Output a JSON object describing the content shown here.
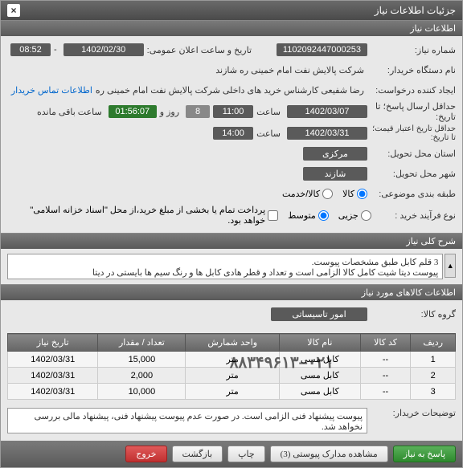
{
  "window": {
    "title": "جزئیات اطلاعات نیاز",
    "close": "×"
  },
  "sections": {
    "general": "اطلاعات نیاز",
    "summary": "شرح کلی نیاز",
    "items": "اطلاعات کالاهای مورد نیاز"
  },
  "fields": {
    "req_no_lbl": "شماره نیاز:",
    "req_no": "1102092447000253",
    "announce_lbl": "تاریخ و ساعت اعلان عمومی:",
    "announce_date": "1402/02/30",
    "announce_time": "08:52",
    "dash": " - ",
    "buyer_lbl": "نام دستگاه خریدار:",
    "buyer": "شرکت پالایش نفت امام خمینی ره  شازند",
    "requester_lbl": "ایجاد کننده درخواست:",
    "requester": "رضا  شفیعی  کارشناس خرید های داخلی  شرکت پالایش نفت امام خمینی  ره",
    "contact_link": "اطلاعات تماس خریدار",
    "deadline_lbl": "حداقل ارسال پاسخ؛ تا تاریخ:",
    "deadline_date": "1402/03/07",
    "saat_lbl": "ساعت",
    "deadline_time": "11:00",
    "days": "8",
    "va_lbl": "روز و",
    "countdown": "01:56:07",
    "remain_lbl": "ساعت باقی مانده",
    "valid_lbl": "حداقل تاریخ اعتبار قیمت؛ تا تاریخ:",
    "valid_date": "1402/03/31",
    "valid_time": "14:00",
    "deliver_prov_lbl": "استان محل تحویل:",
    "deliver_prov": "مرکزی",
    "deliver_city_lbl": "شهر محل تحویل:",
    "deliver_city": "شازند",
    "subject_lbl": "طبقه بندی موضوعی:",
    "subject_goods": "کالا",
    "subject_service": "کالا/خدمت",
    "process_lbl": "نوع فرآیند خرید :",
    "proc_small": "جزیی",
    "proc_medium": "متوسط",
    "proc_note": "پرداخت تمام یا بخشی از مبلغ خرید،از محل \"اسناد خزانه اسلامی\" خواهد بود.",
    "desc_text": "3 قلم کابل طبق مشخصات پیوست.\nپیوست دیتا شیت کامل کالا الزامی است و تعداد و قطر هادی کابل ها و رنگ سیم ها بایستی در دیتا",
    "group_lbl": "گروه کالا:",
    "group": "امور تاسیساتی",
    "buyer_notes_lbl": "توضیحات خریدار:",
    "buyer_notes": "پیوست پیشنهاد فنی الزامی است. در صورت عدم پیوست پیشنهاد فنی، پیشنهاد مالی بررسی نخواهد شد."
  },
  "table": {
    "headers": {
      "row": "ردیف",
      "code": "کد کالا",
      "name": "نام کالا",
      "unit": "واحد شمارش",
      "qty": "تعداد / مقدار",
      "date": "تاریخ نیاز"
    },
    "rows": [
      {
        "row": "1",
        "code": "--",
        "name": "کابل مسی",
        "unit": "متر",
        "qty": "15,000",
        "date": "1402/03/31"
      },
      {
        "row": "2",
        "code": "--",
        "name": "کابل مسی",
        "unit": "متر",
        "qty": "2,000",
        "date": "1402/03/31"
      },
      {
        "row": "3",
        "code": "--",
        "name": "کابل مسی",
        "unit": "متر",
        "qty": "10,000",
        "date": "1402/03/31"
      }
    ]
  },
  "overlay_phone": "۰۲۱–۸۸۳۴۹۶۱۳",
  "footer": {
    "respond": "پاسخ به نیاز",
    "attachments": "مشاهده مدارک پیوستی (3)",
    "print": "چاپ",
    "back": "بازگشت",
    "exit": "خروج"
  },
  "scroll": {
    "up": "▲",
    "down": "▼"
  },
  "colors": {
    "header_dark": "#5a5a5a",
    "header_light": "#888888",
    "green": "#2d7a2d",
    "link": "#0066cc",
    "btn_red": "#c03030",
    "btn_green": "#2d8a2d"
  }
}
